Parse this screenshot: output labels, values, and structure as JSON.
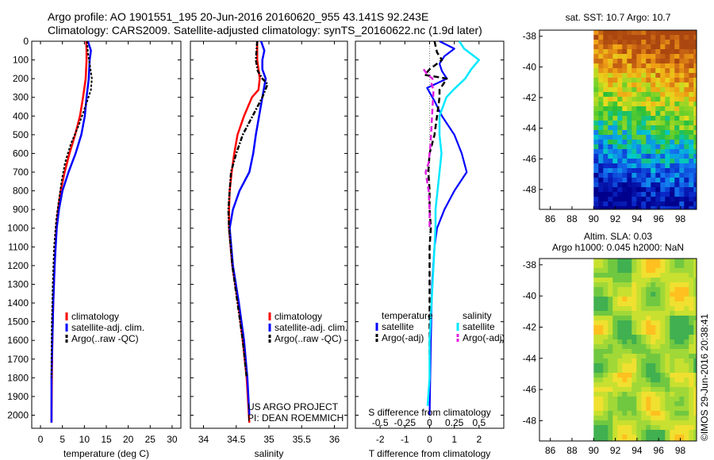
{
  "header": {
    "line1": "Argo profile: AO 1901551_195 20-Jun-2016 20160620_955 43.141S 92.243E",
    "line2": "Climatology: CARS2009. Satellite-adjusted climatology: synTS_20160622.nc (1.9d later)"
  },
  "colors": {
    "climatology": "#ff0000",
    "satellite": "#0000ff",
    "argo": "#000000",
    "sal_satellite": "#00e8ff",
    "sal_argo": "#e020e0"
  },
  "depth_axis": {
    "ticks": [
      "0",
      "100",
      "200",
      "300",
      "400",
      "500",
      "600",
      "700",
      "800",
      "900",
      "1000",
      "1100",
      "1200",
      "1300",
      "1400",
      "1500",
      "1600",
      "1700",
      "1800",
      "1900",
      "2000"
    ],
    "range": [
      0,
      2070
    ]
  },
  "chart_data": [
    {
      "type": "line",
      "name": "temperature-profile",
      "xlabel": "temperature (deg C)",
      "xlim": [
        -2,
        32
      ],
      "xticks": [
        "0",
        "5",
        "10",
        "15",
        "20",
        "25",
        "30"
      ],
      "ylim": [
        0,
        2070
      ],
      "legend": [
        "climatology",
        "satellite-adj. clim.",
        "Argo(..raw -QC)"
      ],
      "series": [
        {
          "name": "climatology",
          "depth": [
            0,
            50,
            100,
            200,
            300,
            400,
            500,
            600,
            700,
            800,
            900,
            1000,
            1200,
            1400,
            1600,
            1800,
            2040
          ],
          "values": [
            10.4,
            10.5,
            10.5,
            10.3,
            9.7,
            9.0,
            7.9,
            6.6,
            5.5,
            4.6,
            4.0,
            3.6,
            3.2,
            2.9,
            2.7,
            2.6,
            2.5
          ]
        },
        {
          "name": "satellite-adj. clim.",
          "depth": [
            0,
            50,
            100,
            200,
            300,
            400,
            500,
            600,
            700,
            800,
            900,
            1000,
            1200,
            1400,
            1600,
            1800,
            2040
          ],
          "values": [
            10.8,
            11.5,
            11.2,
            11.0,
            10.5,
            10.1,
            9.3,
            8.0,
            6.4,
            5.0,
            4.2,
            3.7,
            3.2,
            2.9,
            2.7,
            2.5,
            2.5
          ]
        },
        {
          "name": "Argo(..raw -QC)",
          "depth": [
            0,
            60,
            120,
            200,
            260,
            350,
            450,
            550,
            650,
            750,
            850,
            950,
            1100,
            1300,
            1500,
            1700,
            1800
          ],
          "values": [
            10.6,
            10.8,
            11.2,
            11.7,
            11.5,
            10.2,
            8.7,
            6.9,
            5.6,
            4.8,
            4.2,
            3.6,
            3.1,
            2.8,
            2.6,
            2.5,
            2.5
          ]
        }
      ]
    },
    {
      "type": "line",
      "name": "salinity-profile",
      "xlabel": "salinity",
      "xlim": [
        33.8,
        36.2
      ],
      "xticks": [
        "34",
        "34.5",
        "35",
        "35.5",
        "36"
      ],
      "ylim": [
        0,
        2070
      ],
      "legend": [
        "climatology",
        "satellite-adj. clim.",
        "Argo(..raw -QC)"
      ],
      "annotation": [
        "US ARGO PROJECT",
        "PI: DEAN ROEMMICH"
      ],
      "series": [
        {
          "name": "climatology",
          "depth": [
            0,
            100,
            200,
            260,
            300,
            400,
            500,
            600,
            700,
            800,
            900,
            1000,
            1200,
            1400,
            1600,
            1800,
            2040
          ],
          "values": [
            34.82,
            34.82,
            34.86,
            34.84,
            34.74,
            34.62,
            34.52,
            34.47,
            34.43,
            34.4,
            34.39,
            34.39,
            34.44,
            34.53,
            34.6,
            34.66,
            34.7
          ]
        },
        {
          "name": "satellite-adj. clim.",
          "depth": [
            0,
            50,
            100,
            150,
            200,
            300,
            400,
            500,
            600,
            700,
            800,
            900,
            1000,
            1200,
            1400,
            1600,
            1800,
            2000
          ],
          "values": [
            34.88,
            34.93,
            34.9,
            34.9,
            34.95,
            34.9,
            34.85,
            34.8,
            34.76,
            34.7,
            34.55,
            34.45,
            34.4,
            34.45,
            34.54,
            34.62,
            34.67,
            34.7
          ]
        },
        {
          "name": "Argo(..raw -QC)",
          "depth": [
            0,
            100,
            160,
            200,
            230,
            300,
            400,
            500,
            600,
            700,
            800,
            900,
            1000,
            1200,
            1400,
            1600,
            1800
          ],
          "values": [
            34.82,
            34.8,
            34.83,
            34.9,
            34.98,
            34.9,
            34.75,
            34.6,
            34.5,
            34.42,
            34.4,
            34.38,
            34.39,
            34.44,
            34.52,
            34.6,
            34.66
          ]
        }
      ]
    },
    {
      "type": "line",
      "name": "difference-profile",
      "xlabel": "T difference from climatology",
      "xlabel_top": "S difference from climatology",
      "xlim": [
        -3,
        3
      ],
      "xticks": [
        "-2",
        "-1",
        "0",
        "1",
        "2"
      ],
      "sticks": [
        "-0.5",
        "-0.25",
        "0",
        "0.25",
        "0.5"
      ],
      "ylim": [
        0,
        2070
      ],
      "legend_groups": {
        "temperature": {
          "title": "temperature",
          "items": [
            "satellite",
            "Argo(-adj)"
          ]
        },
        "salinity": {
          "title": "salinity",
          "items": [
            "satellite",
            "Argo(-adj)"
          ]
        }
      },
      "series": [
        {
          "name": "temperature satellite",
          "depth": [
            0,
            40,
            80,
            120,
            160,
            200,
            250,
            320,
            400,
            500,
            600,
            700,
            800,
            900,
            1000,
            1100,
            1300,
            1600,
            2000
          ],
          "values": [
            0.4,
            1.0,
            0.6,
            0.4,
            0.5,
            0.7,
            -0.1,
            0.2,
            0.5,
            1.0,
            1.3,
            1.5,
            1.0,
            0.6,
            0.3,
            0.2,
            0.1,
            0.05,
            0.0
          ]
        },
        {
          "name": "temperature Argo(-adj)",
          "depth": [
            0,
            60,
            100,
            150,
            180,
            200,
            260,
            300,
            400,
            500,
            600,
            700,
            800,
            900,
            1000,
            1100,
            1300,
            1700
          ],
          "values": [
            0.2,
            0.3,
            0.5,
            0.0,
            -0.2,
            0.7,
            0.4,
            0.4,
            0.3,
            0.2,
            0.0,
            -0.05,
            0.0,
            0.0,
            0.05,
            0.0,
            0.0,
            0.0
          ]
        },
        {
          "name": "salinity satellite",
          "depth": [
            0,
            40,
            80,
            100,
            150,
            200,
            260,
            300,
            400,
            500,
            600,
            700,
            800,
            900,
            1000,
            1100,
            1300,
            1600,
            1800,
            1950
          ],
          "values": [
            0.3,
            0.35,
            0.45,
            0.5,
            0.42,
            0.36,
            0.24,
            0.17,
            0.1,
            0.1,
            0.12,
            0.1,
            0.08,
            0.06,
            0.06,
            0.05,
            0.03,
            0.0,
            0.0,
            -0.02
          ]
        },
        {
          "name": "salinity Argo(-adj)",
          "depth": [
            150,
            180,
            200,
            230,
            260,
            350,
            450,
            550,
            650,
            700,
            800,
            900,
            1000
          ],
          "values": [
            -0.06,
            -0.02,
            0.03,
            0.02,
            0.04,
            0.03,
            0.02,
            0.01,
            -0.01,
            -0.04,
            -0.01,
            0.0,
            0.0
          ]
        }
      ]
    },
    {
      "type": "heatmap",
      "name": "sst-map",
      "title": "sat. SST: 10.7 Argo: 10.7",
      "xlim": [
        85,
        99.5
      ],
      "ylim": [
        -49.3,
        -37.6
      ],
      "xticks": [
        "86",
        "88",
        "90",
        "92",
        "94",
        "96",
        "98"
      ],
      "yticks": [
        "-38",
        "-40",
        "-42",
        "-44",
        "-46",
        "-48"
      ],
      "data_start_lon": 90
    },
    {
      "type": "heatmap",
      "name": "sla-map",
      "title_line1": "Altim. SLA: 0.03",
      "title_line2": "Argo h1000: 0.045 h2000: NaN",
      "xlim": [
        85,
        99.5
      ],
      "ylim": [
        -49.3,
        -37.6
      ],
      "xticks": [
        "86",
        "88",
        "90",
        "92",
        "94",
        "96",
        "98"
      ],
      "yticks": [
        "-38",
        "-40",
        "-42",
        "-44",
        "-46",
        "-48"
      ],
      "data_start_lon": 90
    }
  ],
  "stamp": "©IMOS 29-Jun-2016 20:38:41"
}
